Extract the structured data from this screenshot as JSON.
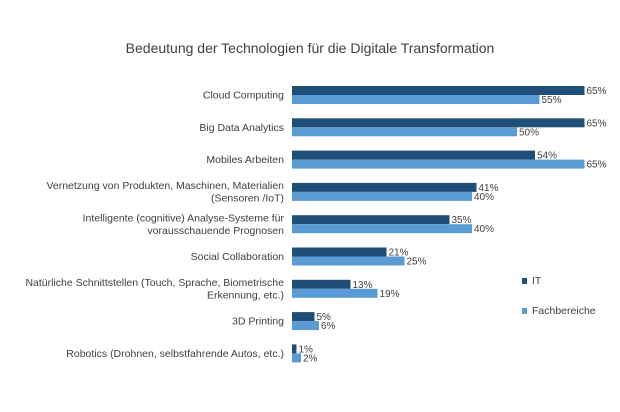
{
  "chart_data": {
    "type": "bar",
    "orientation": "horizontal",
    "title": "Bedeutung der Technologien für die Digitale Transformation",
    "categories": [
      [
        "Cloud Computing"
      ],
      [
        "Big Data Analytics"
      ],
      [
        "Mobiles Arbeiten"
      ],
      [
        "Vernetzung von Produkten, Maschinen, Materialien",
        "(Sensoren /IoT)"
      ],
      [
        "Intelligente (cognitive) Analyse-Systeme für",
        "vorausschauende Prognosen"
      ],
      [
        "Social Collaboration"
      ],
      [
        "Natürliche Schnittstellen (Touch, Sprache, Biometrische",
        "Erkennung, etc.)"
      ],
      [
        "3D Printing"
      ],
      [
        "Robotics (Drohnen, selbstfahrende Autos, etc.)"
      ]
    ],
    "series": [
      {
        "name": "IT",
        "color": "#1f4e79",
        "values": [
          65,
          65,
          54,
          41,
          35,
          21,
          13,
          5,
          1
        ]
      },
      {
        "name": "Fachbereiche",
        "color": "#5b9bd5",
        "values": [
          55,
          50,
          65,
          40,
          40,
          25,
          19,
          6,
          2
        ]
      }
    ],
    "value_suffix": "%",
    "xlim": [
      0,
      65
    ],
    "legend": "right",
    "grid": false
  }
}
